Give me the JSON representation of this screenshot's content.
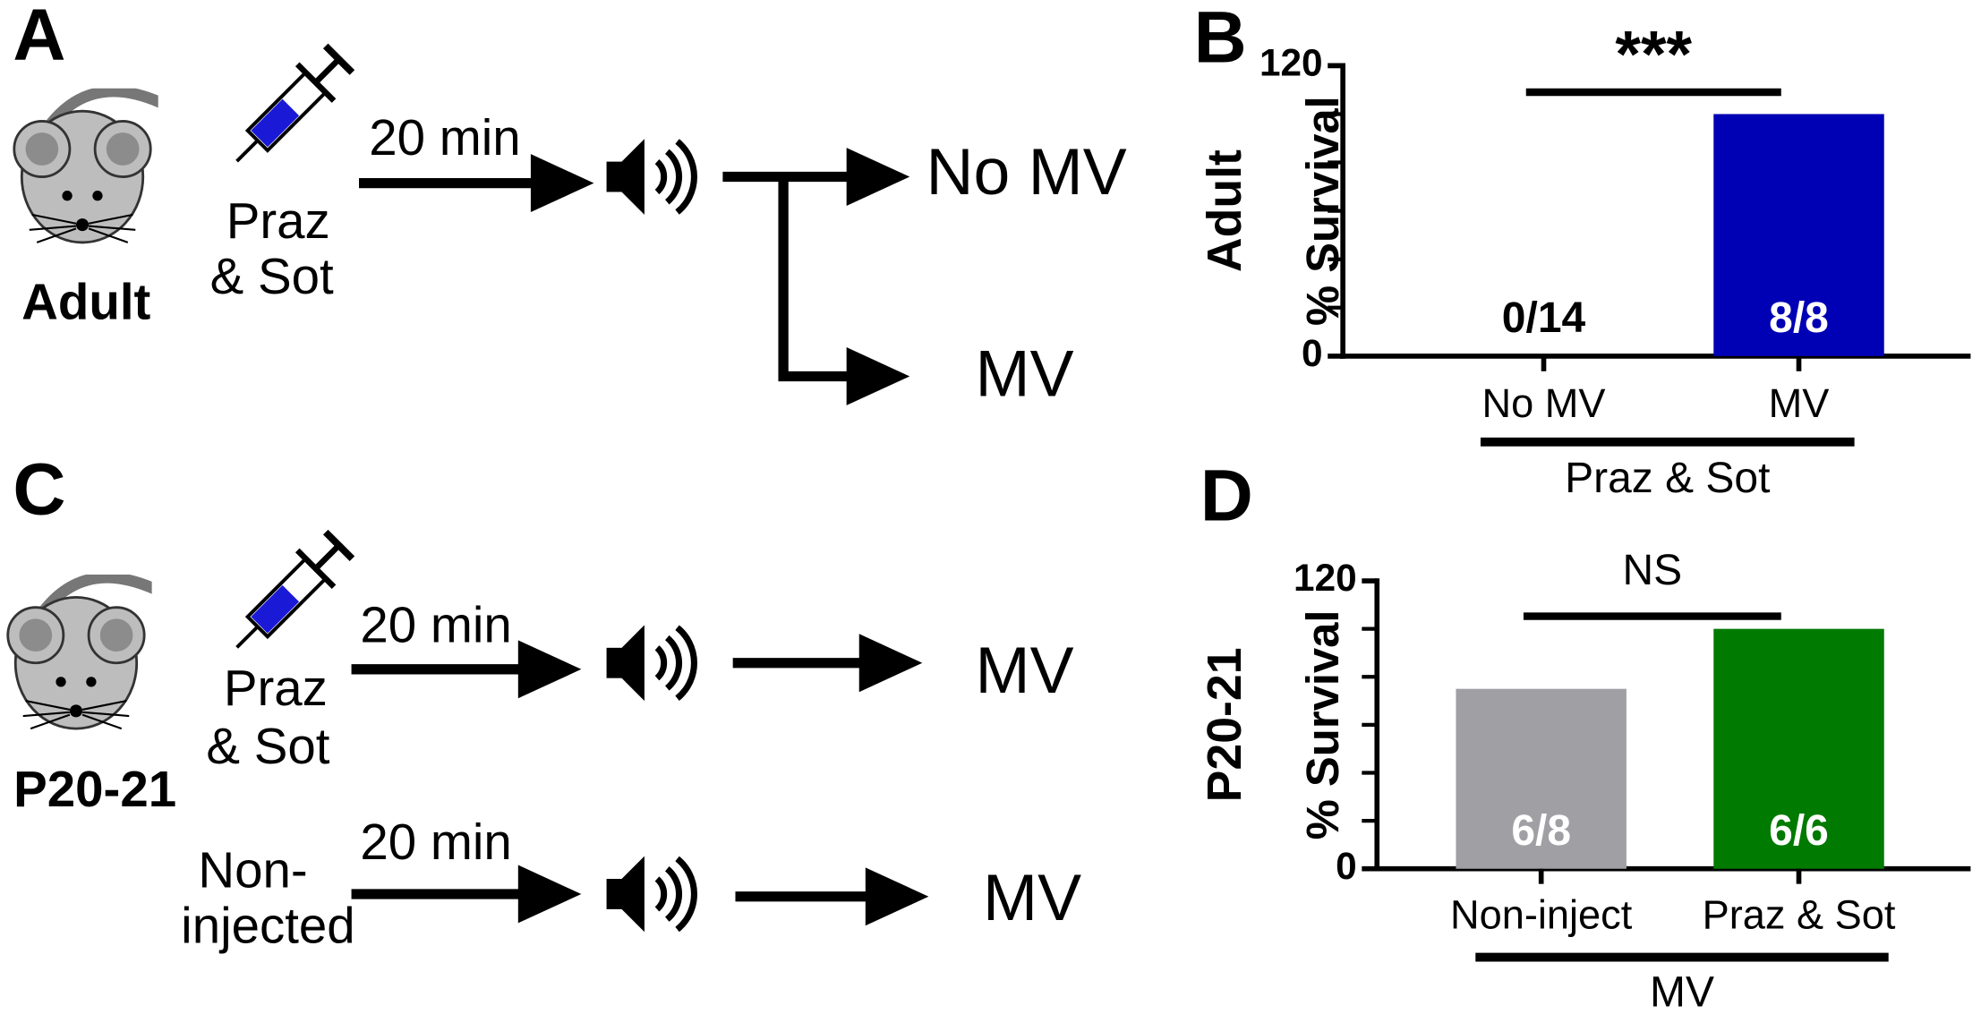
{
  "panel_labels": [
    "A",
    "B",
    "C",
    "D"
  ],
  "diagram_a": {
    "subject": "Adult",
    "drug_lines": [
      "Praz",
      "& Sot"
    ],
    "delay": "20 min",
    "outcomes": [
      "No MV",
      "MV"
    ]
  },
  "diagram_c": {
    "subject": "P20-21",
    "rows": [
      {
        "label_lines": [
          "Praz",
          "& Sot"
        ],
        "delay": "20 min",
        "outcome": "MV"
      },
      {
        "label_lines": [
          "Non-",
          "injected"
        ],
        "delay": "20 min",
        "outcome": "MV"
      }
    ]
  },
  "chart_data": [
    {
      "type": "bar",
      "row_label": "Adult",
      "ylabel": "% Survival",
      "categories": [
        "No MV",
        "MV"
      ],
      "values": [
        0,
        100
      ],
      "value_labels": [
        "0/14",
        "8/8"
      ],
      "colors": [
        "#000000",
        "#0000b4"
      ],
      "ylim": [
        0,
        120
      ],
      "yticks": [
        0,
        120
      ],
      "minor_yticks": [
        20,
        40,
        60,
        80,
        100
      ],
      "group_label": "Praz & Sot",
      "significance": "***"
    },
    {
      "type": "bar",
      "row_label": "P20-21",
      "ylabel": "% Survival",
      "categories": [
        "Non-inject",
        "Praz & Sot"
      ],
      "values": [
        75,
        100
      ],
      "value_labels": [
        "6/8",
        "6/6"
      ],
      "colors": [
        "#a0a0a4",
        "#007a00"
      ],
      "ylim": [
        0,
        120
      ],
      "yticks": [
        0,
        120
      ],
      "minor_yticks": [
        20,
        40,
        60,
        80,
        100
      ],
      "group_label": "MV",
      "significance": "NS"
    }
  ]
}
